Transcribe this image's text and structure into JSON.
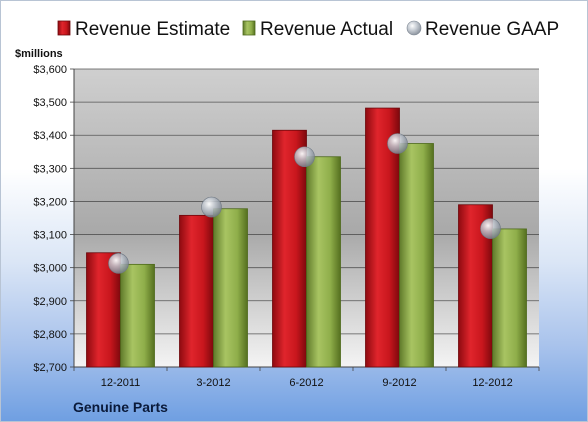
{
  "chart_data": {
    "type": "bar",
    "unit_label": "$millions",
    "categories": [
      "12-2011",
      "3-2012",
      "6-2012",
      "9-2012",
      "12-2012"
    ],
    "series": [
      {
        "name": "Revenue Estimate",
        "kind": "bar",
        "color": "#c8161d",
        "values": [
          3045,
          3158,
          3415,
          3482,
          3190
        ]
      },
      {
        "name": "Revenue Actual",
        "kind": "bar",
        "color": "#8fae4a",
        "values": [
          3010,
          3178,
          3335,
          3375,
          3117
        ]
      },
      {
        "name": "Revenue GAAP",
        "kind": "marker",
        "color": "#a9b2bd",
        "values": [
          3013,
          3183,
          3335,
          3375,
          3118
        ]
      }
    ],
    "ylim": [
      2700,
      3600
    ],
    "y_ticks": [
      "$2,700",
      "$2,800",
      "$2,900",
      "$3,000",
      "$3,100",
      "$3,200",
      "$3,300",
      "$3,400",
      "$3,500",
      "$3,600"
    ],
    "y_tick_values": [
      2700,
      2800,
      2900,
      3000,
      3100,
      3200,
      3300,
      3400,
      3500,
      3600
    ],
    "grid": true,
    "legend_position": "top",
    "footer": "Genuine Parts"
  }
}
